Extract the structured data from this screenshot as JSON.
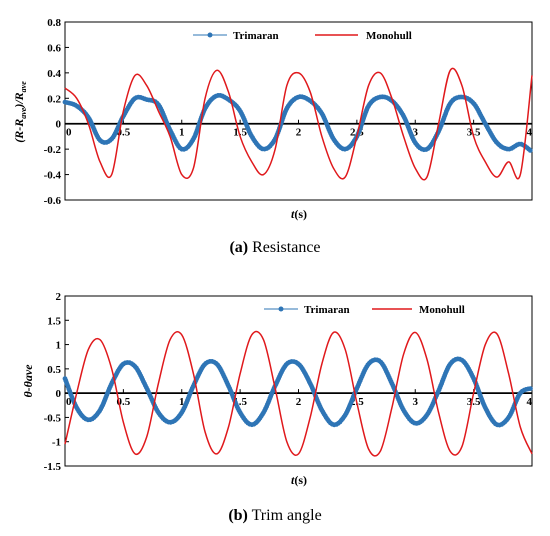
{
  "chart_data": [
    {
      "type": "line",
      "caption_letter": "(a)",
      "caption_text": "Resistance",
      "xlabel": "(s)",
      "xlabel_var": "t",
      "ylabel": "(R-Rave)/Rave",
      "ylabel_parts": [
        "(",
        "R",
        "-",
        "R",
        "ave",
        ")/",
        "R",
        "ave"
      ],
      "xlim": [
        0,
        4
      ],
      "ylim": [
        -0.6,
        0.8
      ],
      "yticks": [
        -0.6,
        -0.4,
        -0.2,
        0,
        0.2,
        0.4,
        0.6,
        0.8
      ],
      "ytick_labels": [
        "-0.6",
        "-0.4",
        "-0.2",
        "0",
        "0.2",
        "0.4",
        "0.6",
        "0.8"
      ],
      "xtick_labels": [
        "0",
        "0.5",
        "1",
        "1.5",
        "2",
        "2.5",
        "3",
        "3.5",
        "4"
      ],
      "xticks": [
        0,
        0.5,
        1,
        1.5,
        2,
        2.5,
        3,
        3.5,
        4
      ],
      "legend": "top-center",
      "series": [
        {
          "name": "Trimaran",
          "color": "#2E75B6",
          "marker": "circle",
          "x": [
            0,
            0.1,
            0.2,
            0.3,
            0.4,
            0.5,
            0.6,
            0.7,
            0.8,
            0.9,
            1.0,
            1.1,
            1.2,
            1.3,
            1.4,
            1.5,
            1.6,
            1.7,
            1.8,
            1.9,
            2.0,
            2.1,
            2.2,
            2.3,
            2.4,
            2.5,
            2.6,
            2.7,
            2.8,
            2.9,
            3.0,
            3.1,
            3.2,
            3.3,
            3.4,
            3.5,
            3.6,
            3.7,
            3.8,
            3.9,
            4.0
          ],
          "values": [
            0.17,
            0.14,
            0.05,
            -0.13,
            -0.12,
            0.06,
            0.2,
            0.19,
            0.15,
            -0.05,
            -0.2,
            -0.12,
            0.12,
            0.22,
            0.19,
            0.1,
            -0.1,
            -0.2,
            -0.12,
            0.12,
            0.21,
            0.18,
            0.08,
            -0.12,
            -0.2,
            -0.1,
            0.14,
            0.21,
            0.18,
            0.06,
            -0.15,
            -0.2,
            -0.06,
            0.16,
            0.21,
            0.16,
            0.0,
            -0.15,
            -0.2,
            -0.16,
            -0.22
          ]
        },
        {
          "name": "Monohull",
          "color": "#E0191C",
          "marker": "none",
          "x": [
            0,
            0.1,
            0.2,
            0.3,
            0.4,
            0.5,
            0.6,
            0.7,
            0.8,
            0.9,
            1.0,
            1.1,
            1.2,
            1.3,
            1.4,
            1.5,
            1.6,
            1.7,
            1.8,
            1.9,
            2.0,
            2.1,
            2.2,
            2.3,
            2.4,
            2.5,
            2.6,
            2.7,
            2.8,
            2.9,
            3.0,
            3.1,
            3.2,
            3.3,
            3.4,
            3.5,
            3.6,
            3.7,
            3.8,
            3.9,
            4.0
          ],
          "values": [
            0.28,
            0.2,
            0.0,
            -0.3,
            -0.4,
            0.1,
            0.38,
            0.3,
            0.1,
            -0.1,
            -0.4,
            -0.35,
            0.2,
            0.42,
            0.25,
            -0.1,
            -0.3,
            -0.4,
            -0.2,
            0.3,
            0.4,
            0.25,
            -0.1,
            -0.35,
            -0.42,
            -0.1,
            0.3,
            0.4,
            0.2,
            -0.1,
            -0.35,
            -0.42,
            0.0,
            0.42,
            0.3,
            -0.1,
            -0.3,
            -0.42,
            -0.3,
            -0.4,
            0.38
          ]
        }
      ]
    },
    {
      "type": "line",
      "caption_letter": "(b)",
      "caption_text": "Trim angle",
      "xlabel": "(s)",
      "xlabel_var": "t",
      "ylabel": "θ-θave",
      "xlim": [
        0,
        4
      ],
      "ylim": [
        -1.5,
        2
      ],
      "yticks": [
        -1.5,
        -1,
        -0.5,
        0,
        0.5,
        1,
        1.5,
        2
      ],
      "ytick_labels": [
        "-1.5",
        "-1",
        "-0.5",
        "0",
        "0.5",
        "1",
        "1.5",
        "2"
      ],
      "xtick_labels": [
        "0",
        "0.5",
        "1",
        "1.5",
        "2",
        "2.5",
        "3",
        "3.5",
        "4"
      ],
      "xticks": [
        0,
        0.5,
        1,
        1.5,
        2,
        2.5,
        3,
        3.5,
        4
      ],
      "legend": "top-center",
      "series": [
        {
          "name": "Trimaran",
          "color": "#2E75B6",
          "marker": "circle",
          "period": 0.71,
          "amplitude": 0.65,
          "x": [
            0,
            0.1,
            0.2,
            0.3,
            0.4,
            0.5,
            0.6,
            0.7,
            0.8,
            0.9,
            1.0,
            1.1,
            1.2,
            1.3,
            1.4,
            1.5,
            1.6,
            1.7,
            1.8,
            1.9,
            2.0,
            2.1,
            2.2,
            2.3,
            2.4,
            2.5,
            2.6,
            2.7,
            2.8,
            2.9,
            3.0,
            3.1,
            3.2,
            3.3,
            3.4,
            3.5,
            3.6,
            3.7,
            3.8,
            3.9,
            4.0
          ],
          "values": [
            0.3,
            -0.3,
            -0.55,
            -0.35,
            0.2,
            0.6,
            0.55,
            0.1,
            -0.4,
            -0.6,
            -0.4,
            0.15,
            0.6,
            0.6,
            0.15,
            -0.4,
            -0.65,
            -0.4,
            0.15,
            0.6,
            0.6,
            0.2,
            -0.35,
            -0.65,
            -0.45,
            0.1,
            0.6,
            0.65,
            0.2,
            -0.35,
            -0.62,
            -0.45,
            0.05,
            0.6,
            0.68,
            0.3,
            -0.3,
            -0.65,
            -0.5,
            0.0,
            0.1
          ]
        },
        {
          "name": "Monohull",
          "color": "#E0191C",
          "marker": "none",
          "period": 0.71,
          "amplitude": 1.22,
          "x": [
            0,
            0.1,
            0.2,
            0.3,
            0.4,
            0.5,
            0.6,
            0.7,
            0.8,
            0.9,
            1.0,
            1.1,
            1.2,
            1.3,
            1.4,
            1.5,
            1.6,
            1.7,
            1.8,
            1.9,
            2.0,
            2.1,
            2.2,
            2.3,
            2.4,
            2.5,
            2.6,
            2.7,
            2.8,
            2.9,
            3.0,
            3.1,
            3.2,
            3.3,
            3.4,
            3.5,
            3.6,
            3.7,
            3.8,
            3.9,
            4.0
          ],
          "values": [
            -1.05,
            0.0,
            0.9,
            1.1,
            0.5,
            -0.6,
            -1.25,
            -0.9,
            0.2,
            1.1,
            1.2,
            0.4,
            -0.8,
            -1.25,
            -0.7,
            0.4,
            1.2,
            1.1,
            0.1,
            -1.0,
            -1.25,
            -0.5,
            0.6,
            1.25,
            0.9,
            -0.2,
            -1.15,
            -1.2,
            -0.3,
            0.8,
            1.25,
            0.7,
            -0.4,
            -1.2,
            -1.1,
            0.0,
            1.0,
            1.22,
            0.4,
            -0.7,
            -1.25
          ]
        }
      ]
    }
  ]
}
